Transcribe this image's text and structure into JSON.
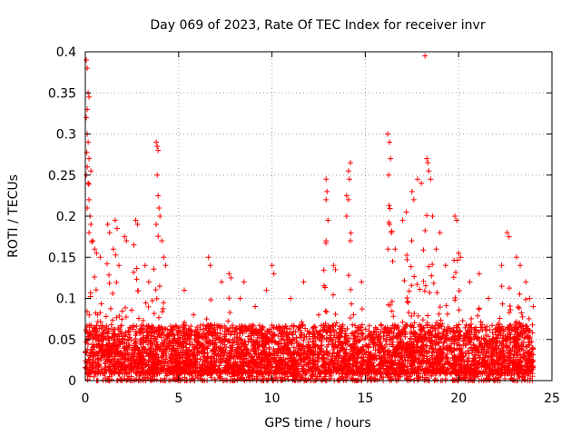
{
  "chart_data": {
    "type": "scatter",
    "title": "Day 069 of 2023, Rate Of TEC Index for receiver invr",
    "xlabel": "GPS time / hours",
    "ylabel": "ROTI / TECUs",
    "xlim": [
      0,
      25
    ],
    "ylim": [
      0,
      0.4
    ],
    "xticks": [
      0,
      5,
      10,
      15,
      20,
      25
    ],
    "yticks": [
      0,
      0.05,
      0.1,
      0.15,
      0.2,
      0.25,
      0.3,
      0.35,
      0.4
    ],
    "xtick_labels": [
      "0",
      "5",
      "10",
      "15",
      "20",
      "25"
    ],
    "ytick_labels": [
      "0",
      "0.05",
      "0.1",
      "0.15",
      "0.2",
      "0.25",
      "0.3",
      "0.35",
      "0.4"
    ],
    "grid": true,
    "marker": "+",
    "color": "#ff0000",
    "x_data_range": [
      0,
      24
    ],
    "series": [
      {
        "name": "ROTI",
        "points": [
          [
            0.05,
            0.39
          ],
          [
            0.1,
            0.38
          ],
          [
            0.15,
            0.35
          ],
          [
            0.2,
            0.345
          ],
          [
            0.1,
            0.33
          ],
          [
            0.05,
            0.32
          ],
          [
            0.1,
            0.3
          ],
          [
            0.15,
            0.29
          ],
          [
            0.2,
            0.27
          ],
          [
            0.1,
            0.26
          ],
          [
            0.3,
            0.255
          ],
          [
            0.05,
            0.25
          ],
          [
            0.15,
            0.24
          ],
          [
            0.2,
            0.22
          ],
          [
            0.1,
            0.21
          ],
          [
            0.25,
            0.2
          ],
          [
            0.3,
            0.19
          ],
          [
            0.2,
            0.18
          ],
          [
            0.4,
            0.17
          ],
          [
            0.5,
            0.16
          ],
          [
            0.6,
            0.155
          ],
          [
            0.8,
            0.15
          ],
          [
            1.2,
            0.19
          ],
          [
            1.3,
            0.18
          ],
          [
            1.6,
            0.195
          ],
          [
            1.7,
            0.185
          ],
          [
            1.5,
            0.16
          ],
          [
            1.8,
            0.14
          ],
          [
            2.1,
            0.175
          ],
          [
            2.2,
            0.17
          ],
          [
            2.7,
            0.195
          ],
          [
            2.8,
            0.19
          ],
          [
            2.6,
            0.165
          ],
          [
            3.2,
            0.14
          ],
          [
            3.4,
            0.12
          ],
          [
            3.8,
            0.29
          ],
          [
            3.85,
            0.285
          ],
          [
            3.9,
            0.28
          ],
          [
            3.85,
            0.25
          ],
          [
            3.9,
            0.225
          ],
          [
            3.95,
            0.21
          ],
          [
            4.0,
            0.2
          ],
          [
            3.8,
            0.19
          ],
          [
            4.1,
            0.17
          ],
          [
            4.3,
            0.14
          ],
          [
            4.2,
            0.15
          ],
          [
            5.3,
            0.11
          ],
          [
            5.8,
            0.08
          ],
          [
            6.5,
            0.075
          ],
          [
            6.6,
            0.15
          ],
          [
            6.7,
            0.14
          ],
          [
            7.3,
            0.12
          ],
          [
            7.7,
            0.13
          ],
          [
            7.8,
            0.125
          ],
          [
            8.3,
            0.1
          ],
          [
            8.5,
            0.12
          ],
          [
            9.1,
            0.09
          ],
          [
            9.7,
            0.11
          ],
          [
            10.0,
            0.14
          ],
          [
            10.1,
            0.13
          ],
          [
            11.0,
            0.1
          ],
          [
            11.7,
            0.12
          ],
          [
            12.5,
            0.08
          ],
          [
            12.9,
            0.245
          ],
          [
            12.95,
            0.23
          ],
          [
            12.9,
            0.22
          ],
          [
            13.0,
            0.195
          ],
          [
            12.9,
            0.17
          ],
          [
            13.3,
            0.14
          ],
          [
            13.4,
            0.135
          ],
          [
            14.0,
            0.225
          ],
          [
            14.1,
            0.255
          ],
          [
            14.2,
            0.265
          ],
          [
            14.15,
            0.245
          ],
          [
            14.1,
            0.22
          ],
          [
            14.0,
            0.2
          ],
          [
            14.2,
            0.17
          ],
          [
            14.8,
            0.12
          ],
          [
            16.2,
            0.3
          ],
          [
            16.3,
            0.29
          ],
          [
            16.35,
            0.27
          ],
          [
            16.25,
            0.25
          ],
          [
            16.3,
            0.19
          ],
          [
            16.4,
            0.18
          ],
          [
            16.6,
            0.16
          ],
          [
            17.0,
            0.195
          ],
          [
            17.2,
            0.205
          ],
          [
            17.5,
            0.23
          ],
          [
            17.6,
            0.22
          ],
          [
            17.8,
            0.245
          ],
          [
            18.0,
            0.24
          ],
          [
            18.2,
            0.395
          ],
          [
            18.3,
            0.27
          ],
          [
            18.35,
            0.265
          ],
          [
            18.4,
            0.255
          ],
          [
            18.5,
            0.245
          ],
          [
            18.6,
            0.2
          ],
          [
            18.8,
            0.16
          ],
          [
            19.0,
            0.18
          ],
          [
            19.3,
            0.14
          ],
          [
            19.8,
            0.2
          ],
          [
            19.9,
            0.195
          ],
          [
            20.0,
            0.155
          ],
          [
            20.1,
            0.15
          ],
          [
            20.6,
            0.12
          ],
          [
            21.1,
            0.13
          ],
          [
            21.6,
            0.1
          ],
          [
            22.3,
            0.14
          ],
          [
            22.6,
            0.18
          ],
          [
            22.7,
            0.175
          ],
          [
            23.1,
            0.15
          ],
          [
            23.3,
            0.14
          ],
          [
            23.6,
            0.12
          ],
          [
            23.8,
            0.1
          ],
          [
            24.0,
            0.09
          ]
        ]
      }
    ],
    "dense_band": {
      "description": "continuous dense band of points from 0 to 24 h, ROTI mostly 0 to 0.06",
      "x_range": [
        0,
        24
      ],
      "y_base_range": [
        0,
        0.06
      ]
    }
  }
}
